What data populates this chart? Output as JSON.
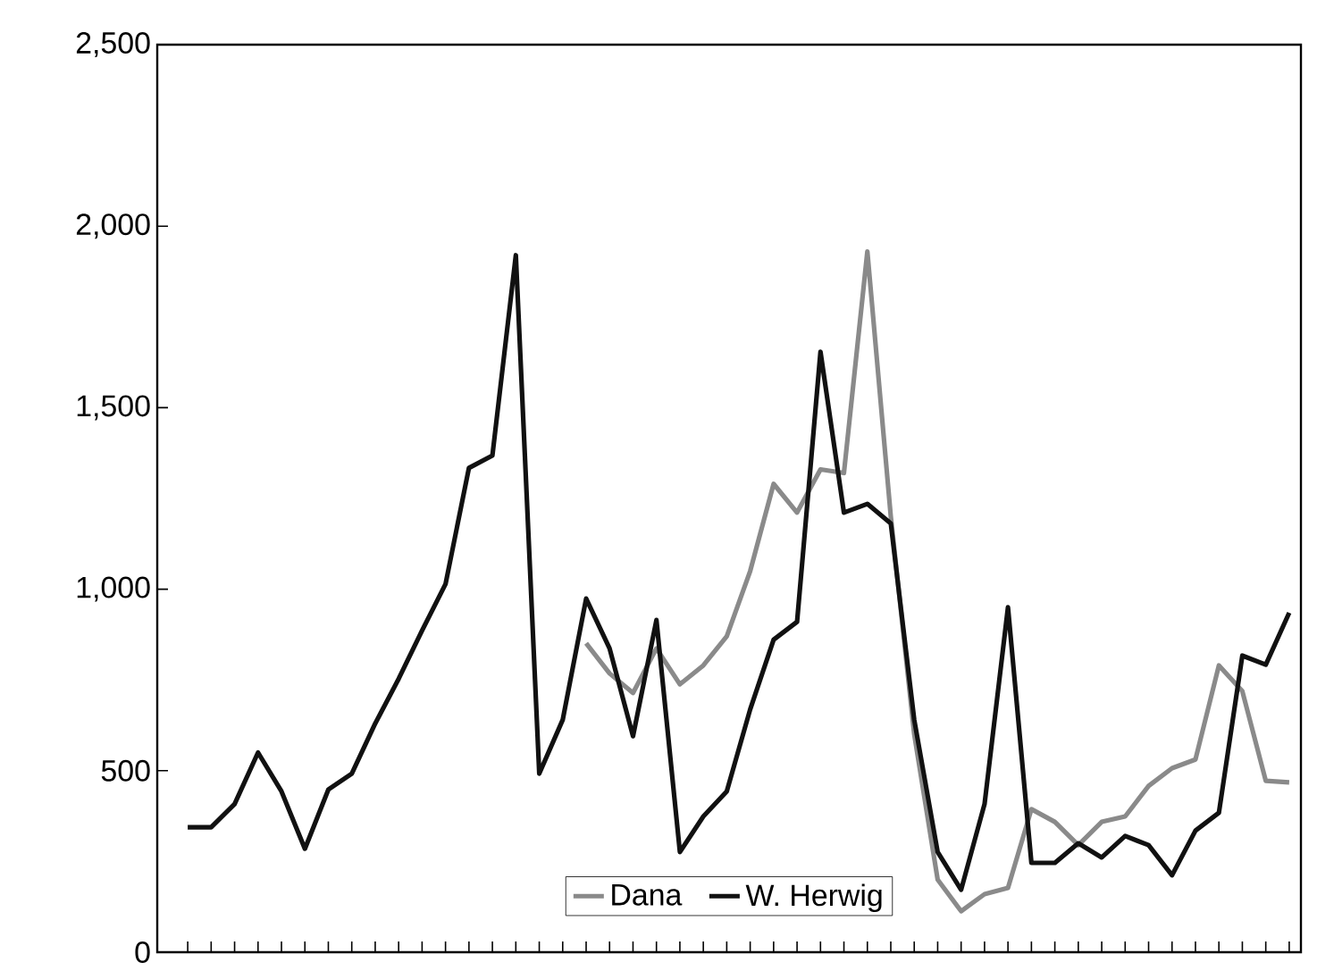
{
  "chart_data": {
    "type": "line",
    "categories": [
      null,
      null,
      null,
      null,
      null,
      null,
      null,
      null,
      null,
      null,
      null,
      null,
      null,
      null,
      null,
      null,
      null,
      null,
      null,
      null,
      null,
      null,
      null,
      null,
      null,
      null,
      null,
      null,
      null,
      null,
      null,
      null,
      null,
      null,
      null,
      null,
      null,
      null,
      null,
      null,
      null,
      null,
      null,
      null,
      null,
      null,
      null,
      null
    ],
    "series": [
      {
        "name": "Dana",
        "color": "#8a8a8a",
        "values": [
          null,
          null,
          null,
          null,
          null,
          null,
          null,
          null,
          null,
          null,
          null,
          null,
          null,
          null,
          null,
          null,
          null,
          851,
          768,
          714,
          837,
          738,
          790,
          870,
          1050,
          1290,
          1211,
          1330,
          1320,
          1930,
          1200,
          600,
          200,
          113,
          160,
          177,
          394,
          359,
          295,
          359,
          374,
          458,
          507,
          531,
          790,
          719,
          472,
          468
        ]
      },
      {
        "name": "W. Herwig",
        "color": "#111111",
        "values": [
          344,
          344,
          408,
          550,
          443,
          285,
          448,
          492,
          630,
          753,
          886,
          1014,
          1334,
          1368,
          1920,
          492,
          640,
          974,
          837,
          595,
          915,
          276,
          374,
          443,
          669,
          861,
          910,
          1654,
          1211,
          1235,
          1181,
          640,
          276,
          172,
          408,
          950,
          246,
          246,
          300,
          261,
          320,
          295,
          212,
          335,
          384,
          817,
          792,
          935
        ]
      }
    ],
    "ylim": [
      0,
      2500
    ],
    "yticks": [
      0,
      {
        "value": 500,
        "label": "500"
      },
      {
        "value": 1000,
        "label": "1,000"
      },
      {
        "value": 1500,
        "label": "1,500"
      },
      {
        "value": 2000,
        "label": "2,000"
      },
      {
        "value": 2500,
        "label": "2,500"
      }
    ],
    "tick_labels": "y",
    "grid": false,
    "legend": "bottom",
    "marker": "none",
    "line_style": "solid"
  }
}
